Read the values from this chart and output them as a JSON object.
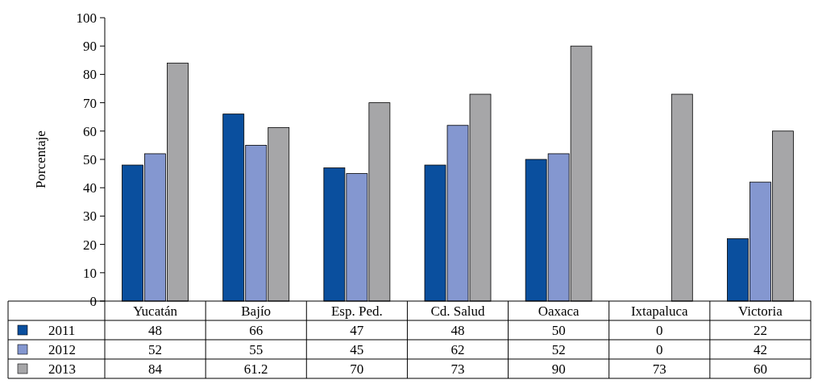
{
  "chart_data": {
    "type": "bar",
    "ylabel": "Porcentaje",
    "categories": [
      "Yucatán",
      "Bajío",
      "Esp. Ped.",
      "Cd. Salud",
      "Oaxaca",
      "Ixtapaluca",
      "Victoria"
    ],
    "series": [
      {
        "name": "2011",
        "color": "#0a4f9e",
        "values": [
          48,
          66,
          47,
          48,
          50,
          0,
          22
        ]
      },
      {
        "name": "2012",
        "color": "#8497d0",
        "values": [
          52,
          55,
          45,
          62,
          52,
          0,
          42
        ]
      },
      {
        "name": "2013",
        "color": "#a6a6a8",
        "values": [
          84,
          61.2,
          70,
          73,
          90,
          73,
          60
        ]
      }
    ],
    "ylim": [
      0,
      100
    ],
    "yticks": [
      0,
      10,
      20,
      30,
      40,
      50,
      60,
      70,
      80,
      90,
      100
    ],
    "grid": false,
    "data_labels": true,
    "legend": "bottom"
  }
}
